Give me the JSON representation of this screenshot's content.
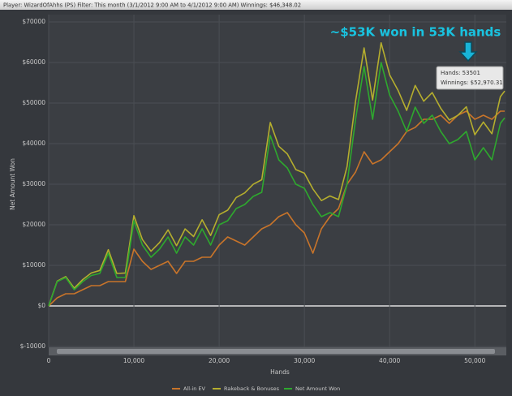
{
  "chart_data": {
    "type": "line",
    "title": "Player: WizardOfAhhs (PS)  Filter: This month (3/1/2012 9:00 AM to 4/1/2012 9:00 AM)  Winnings: $46,348.02",
    "annotation": "~$53K won in 53K hands",
    "tooltip": [
      "Hands: 53501",
      "Winnings: $52,970.31"
    ],
    "x_label": "Hands",
    "y_label": "Net Amount Won",
    "x": [
      0,
      1000,
      2000,
      3000,
      4000,
      5000,
      6000,
      7000,
      8000,
      9000,
      10000,
      11000,
      12000,
      13000,
      14000,
      15000,
      16000,
      17000,
      18000,
      19000,
      20000,
      21000,
      22000,
      23000,
      24000,
      25000,
      26000,
      27000,
      28000,
      29000,
      30000,
      31000,
      32000,
      33000,
      34000,
      35000,
      36000,
      37000,
      38000,
      39000,
      40000,
      41000,
      42000,
      43000,
      44000,
      45000,
      46000,
      47000,
      48000,
      49000,
      50000,
      51000,
      52000,
      53000,
      53501
    ],
    "series": [
      {
        "name": "All-in EV",
        "color": "#c8742a",
        "values": [
          0,
          2000,
          3000,
          3000,
          4000,
          5000,
          5000,
          6000,
          6000,
          6000,
          14000,
          11000,
          9000,
          10000,
          11000,
          8000,
          11000,
          11000,
          12000,
          12000,
          15000,
          17000,
          16000,
          15000,
          17000,
          19000,
          20000,
          22000,
          23000,
          20000,
          18000,
          13000,
          19000,
          22000,
          24000,
          30000,
          33000,
          38000,
          35000,
          36000,
          38000,
          40000,
          43000,
          44000,
          46000,
          46000,
          47000,
          45000,
          47000,
          48000,
          46000,
          47000,
          46000,
          48000,
          48000
        ]
      },
      {
        "name": "Rakeback & Bonuses",
        "color": "#b5ae2e",
        "values": [
          0,
          6124,
          7248,
          4372,
          6496,
          8120,
          8744,
          13868,
          7992,
          8116,
          22240,
          16364,
          13488,
          15612,
          18736,
          14860,
          18984,
          17108,
          21232,
          17356,
          22480,
          23604,
          26728,
          27852,
          29976,
          31100,
          45224,
          39348,
          37472,
          33596,
          32720,
          28844,
          25968,
          27092,
          26216,
          34340,
          50464,
          63588,
          50712,
          64836,
          56960,
          53084,
          48208,
          54332,
          50456,
          52580,
          48704,
          45828,
          46952,
          49076,
          42200,
          45324,
          42448,
          51572,
          52970
        ]
      },
      {
        "name": "Net Amount Won",
        "color": "#2ea82e",
        "values": [
          0,
          6000,
          7000,
          4000,
          6000,
          7500,
          8000,
          13000,
          7000,
          7000,
          21000,
          15000,
          12000,
          14000,
          17000,
          13000,
          17000,
          15000,
          19000,
          15000,
          20000,
          21000,
          24000,
          25000,
          27000,
          28000,
          42000,
          36000,
          34000,
          30000,
          29000,
          25000,
          22000,
          23000,
          22000,
          30000,
          46000,
          59000,
          46000,
          60000,
          52000,
          48000,
          43000,
          49000,
          45000,
          47000,
          43000,
          40000,
          41000,
          43000,
          36000,
          39000,
          36000,
          45000,
          46348
        ]
      }
    ],
    "xlim": [
      0,
      53501
    ],
    "xticks": [
      0,
      {
        "value": 10000,
        "label": "10,000"
      },
      {
        "value": 20000,
        "label": "20,000"
      },
      {
        "value": 30000,
        "label": "30,000"
      },
      {
        "value": 40000,
        "label": "40,000"
      },
      {
        "value": 50000,
        "label": "50,000"
      }
    ],
    "ylim": [
      -10000,
      70000
    ],
    "yticks": [
      {
        "value": -10000,
        "label": "$-10000"
      },
      {
        "value": 0,
        "label": "$0"
      },
      {
        "value": 10000,
        "label": "$10000"
      },
      {
        "value": 20000,
        "label": "$20000"
      },
      {
        "value": 30000,
        "label": "$30000"
      },
      {
        "value": 40000,
        "label": "$40000"
      },
      {
        "value": 50000,
        "label": "$50000"
      },
      {
        "value": 60000,
        "label": "$60000"
      },
      {
        "value": 70000,
        "label": "$70000"
      }
    ],
    "grid": true
  }
}
